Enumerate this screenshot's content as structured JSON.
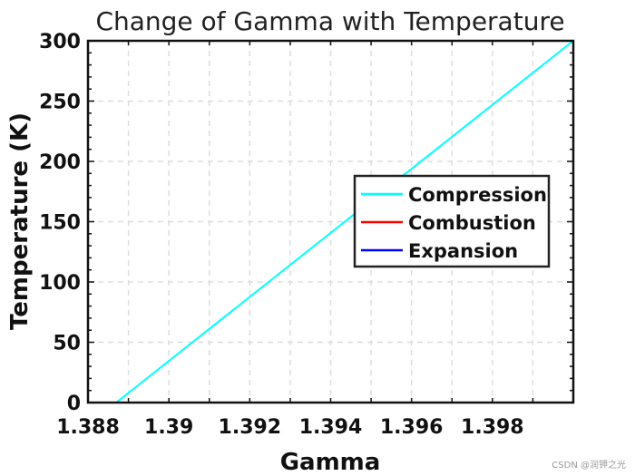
{
  "chart_data": {
    "type": "line",
    "title": "Change of Gamma with Temperature",
    "xlabel": "Gamma",
    "ylabel": "Temperature (K)",
    "xlim": [
      1.388,
      1.4
    ],
    "ylim": [
      0,
      300
    ],
    "xticks": [
      1.388,
      1.39,
      1.392,
      1.394,
      1.396,
      1.398
    ],
    "xtick_labels": [
      "1.388",
      "1.39",
      "1.392",
      "1.394",
      "1.396",
      "1.398"
    ],
    "yticks": [
      0,
      50,
      100,
      150,
      200,
      250,
      300
    ],
    "ytick_labels": [
      "0",
      "50",
      "100",
      "150",
      "200",
      "250",
      "300"
    ],
    "grid": true,
    "legend_position": "right",
    "series": [
      {
        "name": "Compression",
        "color": "#00ffff",
        "x": [
          1.3887,
          1.4
        ],
        "y": [
          0,
          300
        ]
      },
      {
        "name": "Combustion",
        "color": "#ff0000",
        "x": [],
        "y": []
      },
      {
        "name": "Expansion",
        "color": "#0000ff",
        "x": [],
        "y": []
      }
    ]
  },
  "watermark": "CSDN @润钾之光"
}
